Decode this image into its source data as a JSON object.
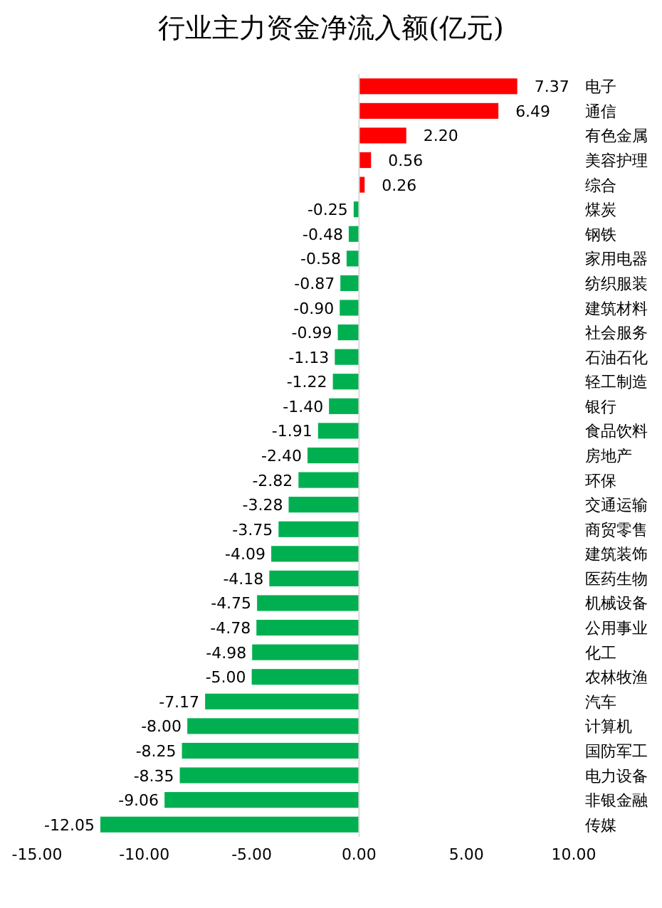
{
  "chart_data": {
    "type": "bar",
    "orientation": "horizontal",
    "title": "行业主力资金净流入额(亿元)",
    "categories": [
      "电子",
      "通信",
      "有色金属",
      "美容护理",
      "综合",
      "煤炭",
      "钢铁",
      "家用电器",
      "纺织服装",
      "建筑材料",
      "社会服务",
      "石油石化",
      "轻工制造",
      "银行",
      "食品饮料",
      "房地产",
      "环保",
      "交通运输",
      "商贸零售",
      "建筑装饰",
      "医药生物",
      "机械设备",
      "公用事业",
      "化工",
      "农林牧渔",
      "汽车",
      "计算机",
      "国防军工",
      "电力设备",
      "非银金融",
      "传媒"
    ],
    "values": [
      7.37,
      6.49,
      2.2,
      0.56,
      0.26,
      -0.25,
      -0.48,
      -0.58,
      -0.87,
      -0.9,
      -0.99,
      -1.13,
      -1.22,
      -1.4,
      -1.91,
      -2.4,
      -2.82,
      -3.28,
      -3.75,
      -4.09,
      -4.18,
      -4.75,
      -4.78,
      -4.98,
      -5.0,
      -7.17,
      -8.0,
      -8.25,
      -8.35,
      -9.06,
      -12.05
    ],
    "colors": [
      "#ff0000",
      "#ff0000",
      "#ff0000",
      "#ff0000",
      "#ff0000",
      "#00b050",
      "#00b050",
      "#00b050",
      "#00b050",
      "#00b050",
      "#00b050",
      "#00b050",
      "#00b050",
      "#00b050",
      "#00b050",
      "#00b050",
      "#00b050",
      "#00b050",
      "#00b050",
      "#00b050",
      "#00b050",
      "#00b050",
      "#00b050",
      "#00b050",
      "#00b050",
      "#00b050",
      "#00b050",
      "#00b050",
      "#00b050",
      "#00b050",
      "#00b050"
    ],
    "value_labels": [
      "7.37",
      "6.49",
      "2.20",
      "0.56",
      "0.26",
      "-0.25",
      "-0.48",
      "-0.58",
      "-0.87",
      "-0.90",
      "-0.99",
      "-1.13",
      "-1.22",
      "-1.40",
      "-1.91",
      "-2.40",
      "-2.82",
      "-3.28",
      "-3.75",
      "-4.09",
      "-4.18",
      "-4.75",
      "-4.78",
      "-4.98",
      "-5.00",
      "-7.17",
      "-8.00",
      "-8.25",
      "-8.35",
      "-9.06",
      "-12.05"
    ],
    "xlim": [
      -15,
      10
    ],
    "xticks": [
      {
        "value": -15,
        "label": "-15.00"
      },
      {
        "value": -10,
        "label": "-10.00"
      },
      {
        "value": -5,
        "label": "-5.00"
      },
      {
        "value": 0,
        "label": "0.00"
      },
      {
        "value": 5,
        "label": "5.00"
      },
      {
        "value": 10,
        "label": "10.00"
      }
    ],
    "legend": false
  }
}
